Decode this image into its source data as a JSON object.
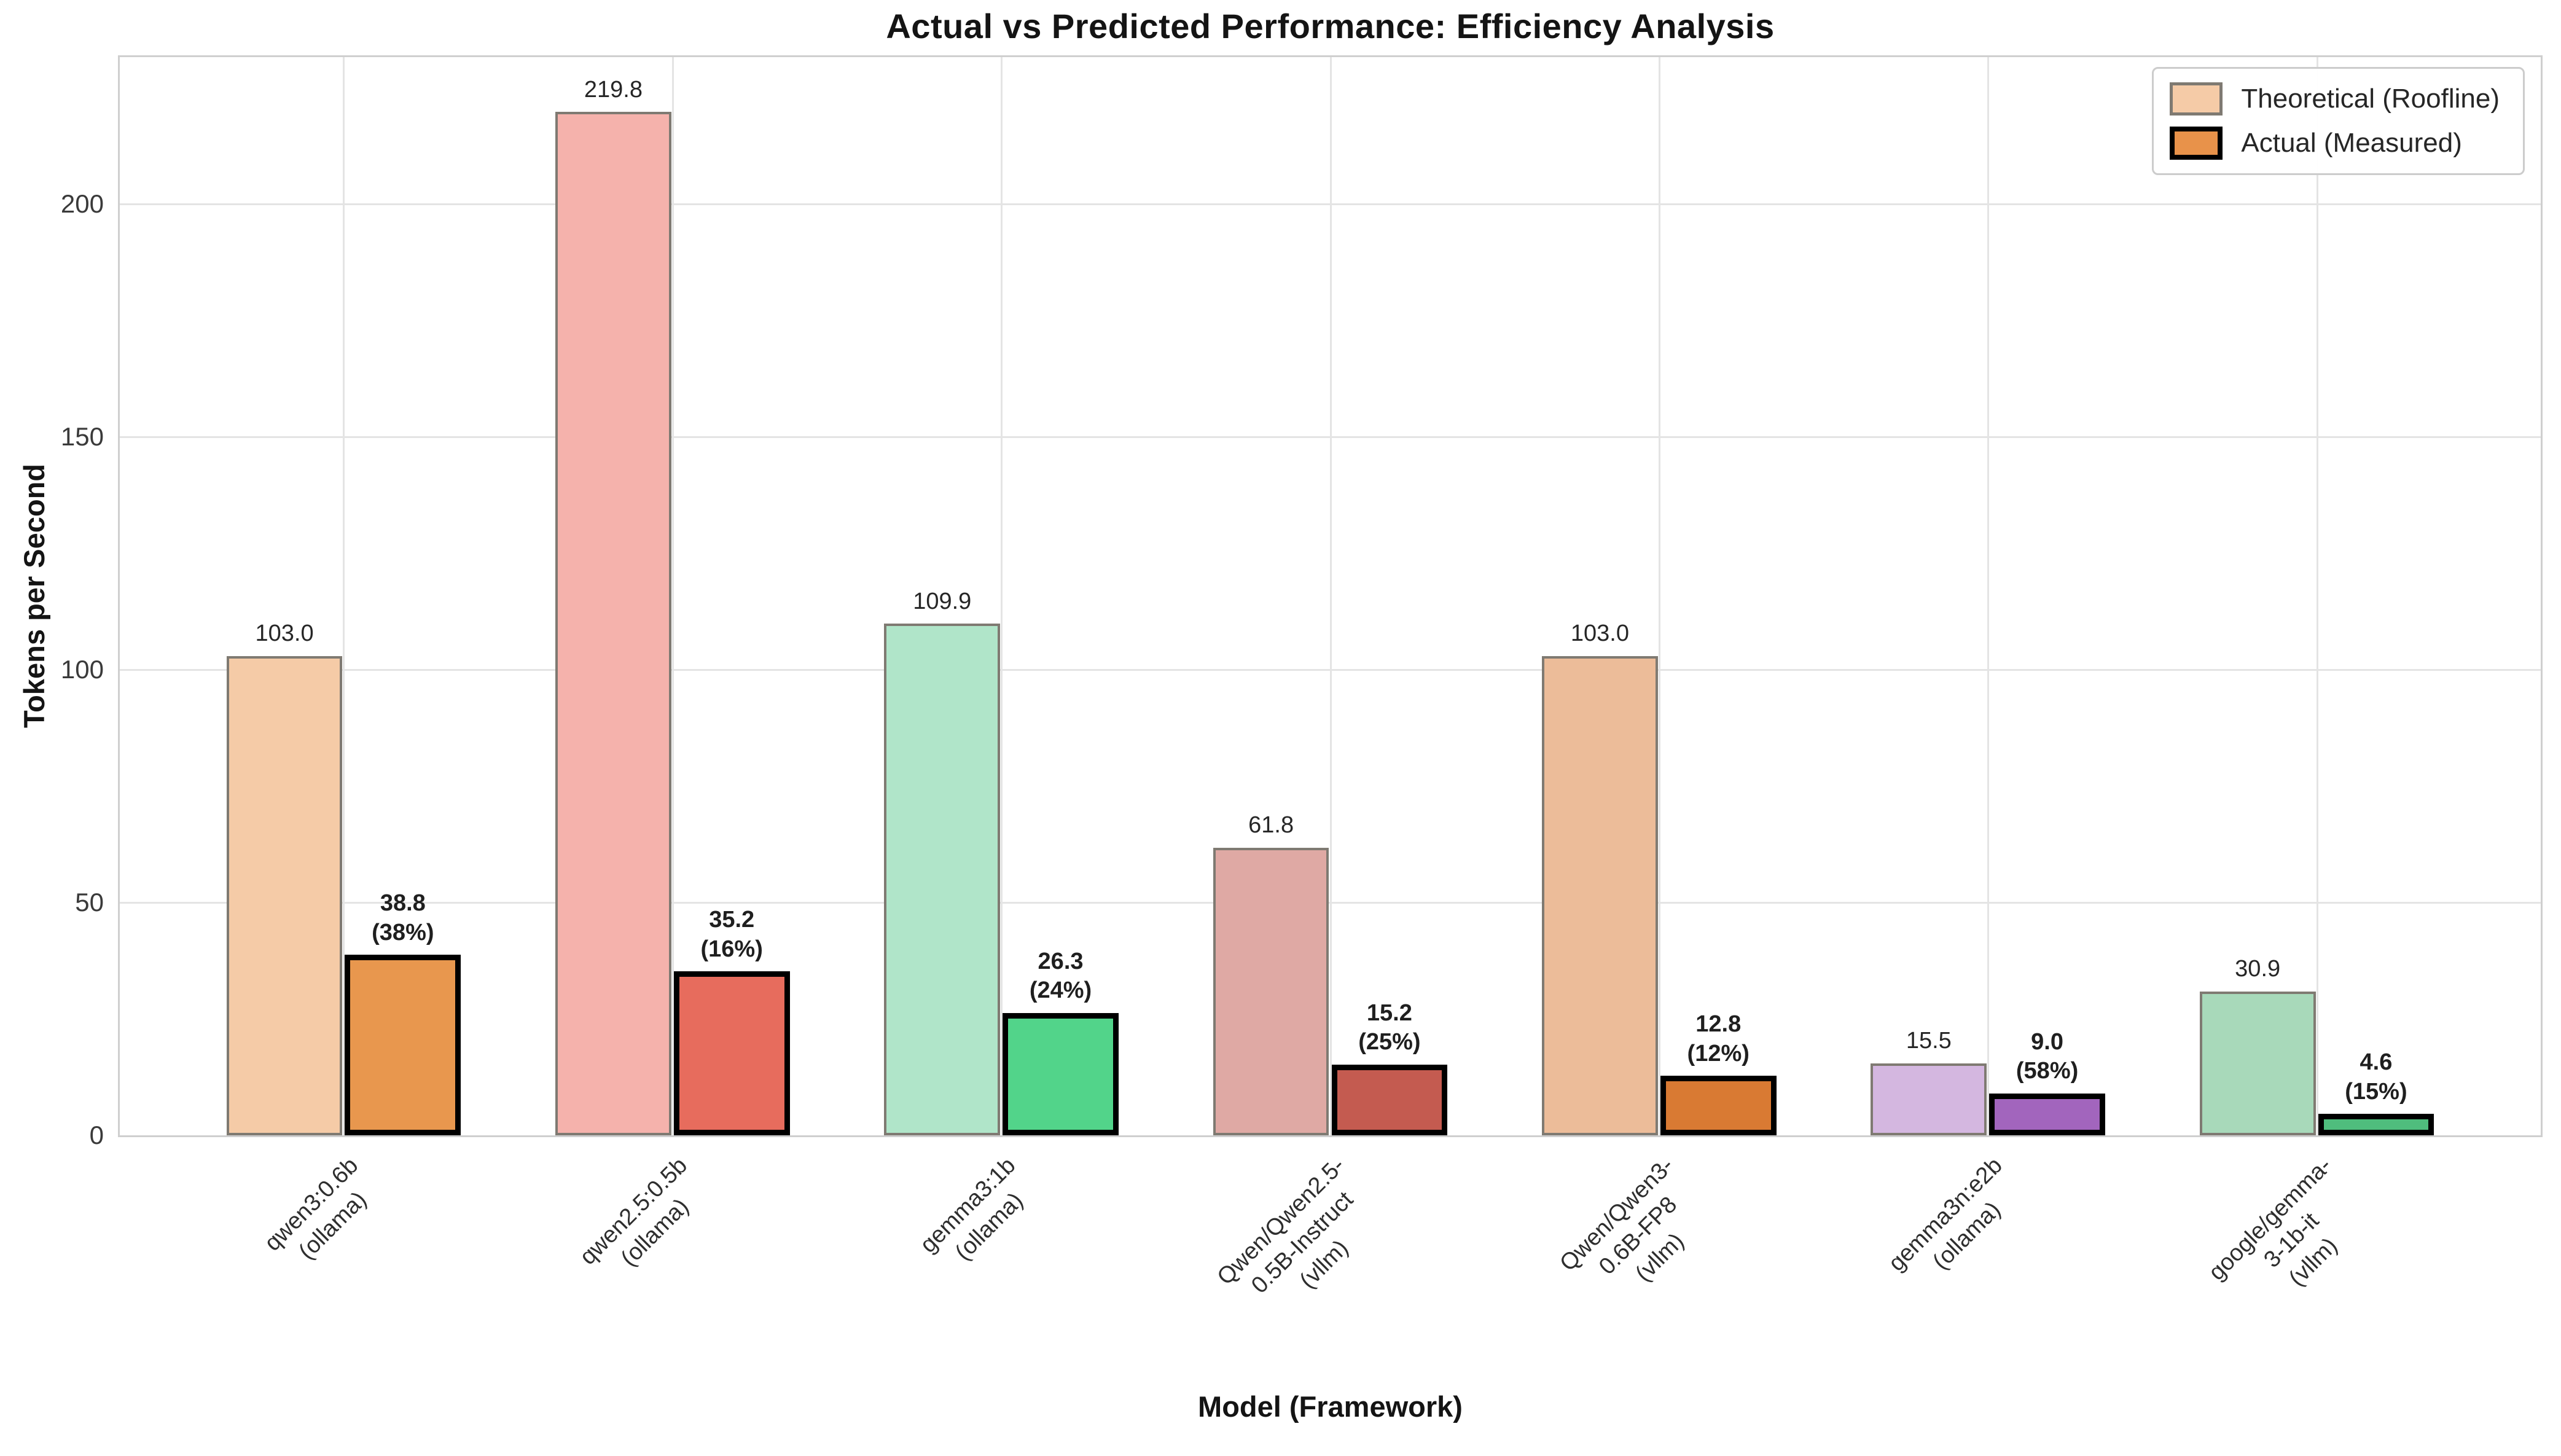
{
  "title": "Actual vs Predicted Performance: Efficiency Analysis",
  "axes": {
    "x_label": "Model (Framework)",
    "y_label": "Tokens per Second"
  },
  "legend": {
    "items": [
      {
        "label": "Theoretical (Roofline)",
        "fill": "#F5CBA7",
        "border": "#7f7a72"
      },
      {
        "label": "Actual (Measured)",
        "fill": "#E8924A",
        "border": "#000000"
      }
    ]
  },
  "chart_data": {
    "type": "bar",
    "title": "Actual vs Predicted Performance: Efficiency Analysis",
    "xlabel": "Model (Framework)",
    "ylabel": "Tokens per Second",
    "ylim": [
      0,
      231.6
    ],
    "yticks": [
      0,
      50,
      100,
      150,
      200
    ],
    "grid": true,
    "legend_position": "upper right",
    "categories": [
      "qwen3:0.6b\n(ollama)",
      "qwen2.5:0.5b\n(ollama)",
      "gemma3:1b\n(ollama)",
      "Qwen/Qwen2.5-0.5B-Instruct\n(vllm)",
      "Qwen/Qwen3-0.6B-FP8\n(vllm)",
      "gemma3n:e2b\n(ollama)",
      "google/gemma-3-1b-it\n(vllm)"
    ],
    "series": [
      {
        "name": "Theoretical (Roofline)",
        "values": [
          103.0,
          219.8,
          109.9,
          61.8,
          103.0,
          15.5,
          30.9
        ]
      },
      {
        "name": "Actual (Measured)",
        "values": [
          38.8,
          35.2,
          26.3,
          15.2,
          12.8,
          9.0,
          4.6
        ],
        "efficiency_pct": [
          38,
          16,
          24,
          25,
          12,
          58,
          15
        ]
      }
    ],
    "bar_colors": {
      "theoretical": [
        "#F5CBA7",
        "#F5B2AC",
        "#B0E5C9",
        "#DFA9A4",
        "#ECBC99",
        "#D4B7E0",
        "#A8D9BA"
      ],
      "actual": [
        "#E8974E",
        "#E76C5D",
        "#52D48A",
        "#C45B50",
        "#D97A33",
        "#A265BD",
        "#4FBD7D"
      ]
    }
  }
}
